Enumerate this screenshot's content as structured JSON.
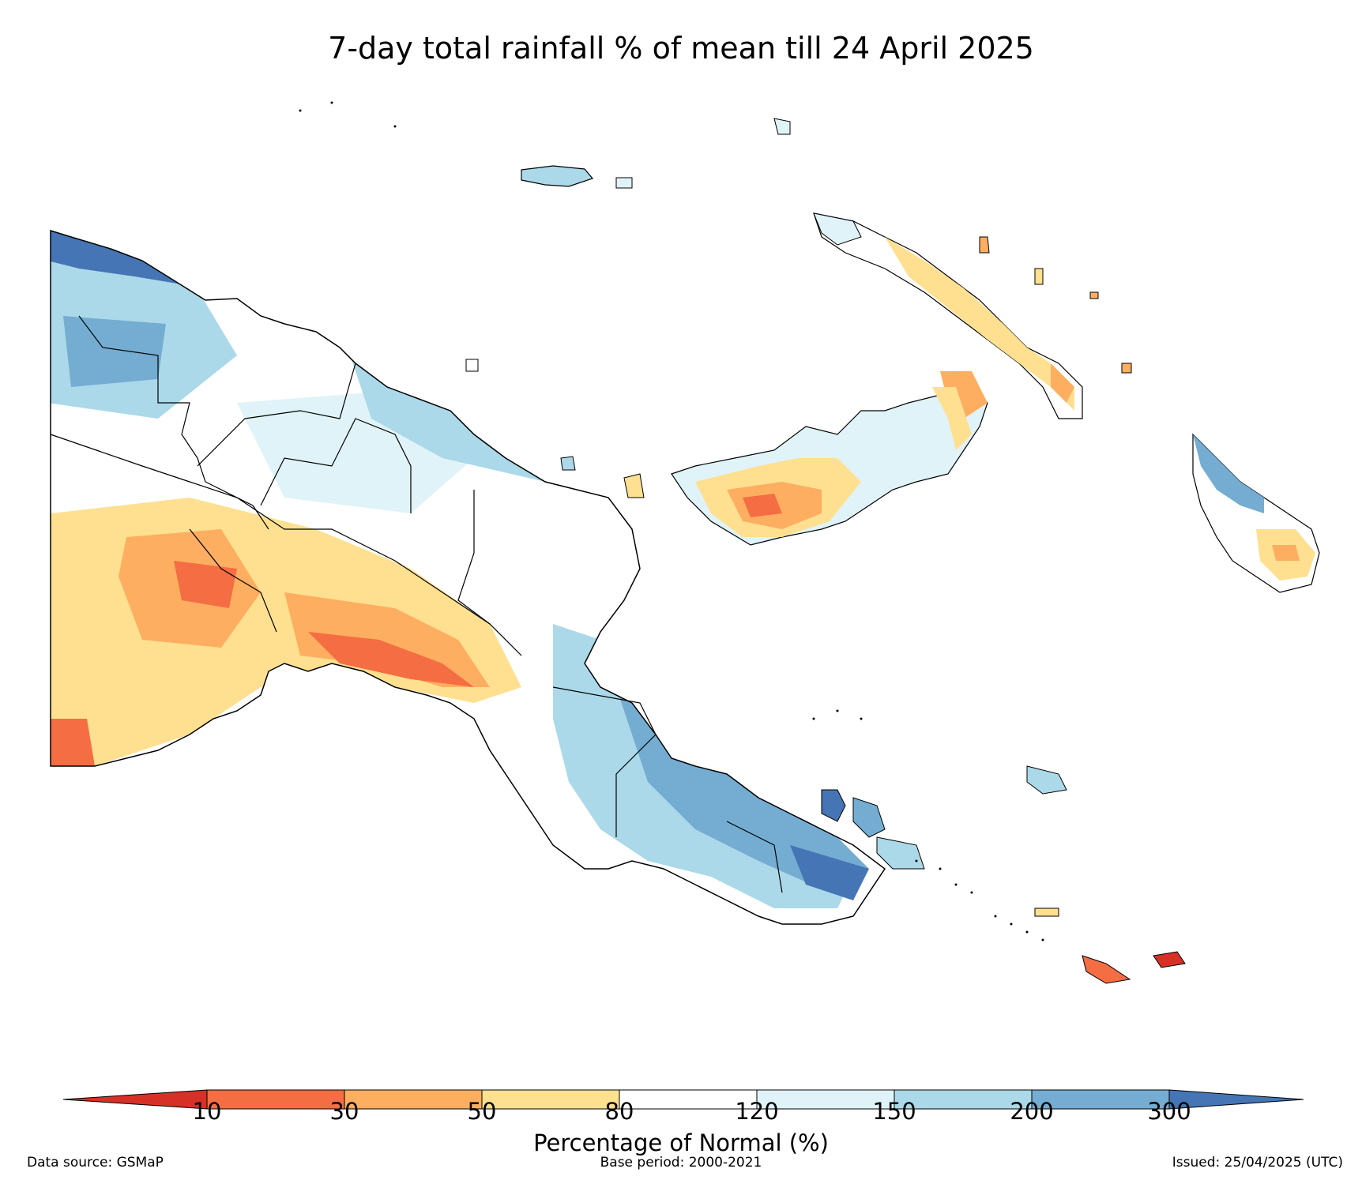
{
  "title": "7-day total rainfall % of mean till 24 April 2025",
  "colorbar": {
    "title": "Percentage of Normal (%)",
    "ticks": [
      "10",
      "30",
      "50",
      "80",
      "120",
      "150",
      "200",
      "300"
    ],
    "colors": {
      "below_10": "#d73027",
      "c10_30": "#f46d43",
      "c30_50": "#fdae61",
      "c50_80": "#fee090",
      "c80_120": "#ffffff",
      "c120_150": "#e0f3f8",
      "c150_200": "#abd9e9",
      "c200_300": "#74add1",
      "above_300": "#4575b4"
    }
  },
  "footer": {
    "source": "Data source: GSMaP",
    "base_period": "Base period: 2000-2021",
    "issued": "Issued: 25/04/2025 (UTC)"
  }
}
